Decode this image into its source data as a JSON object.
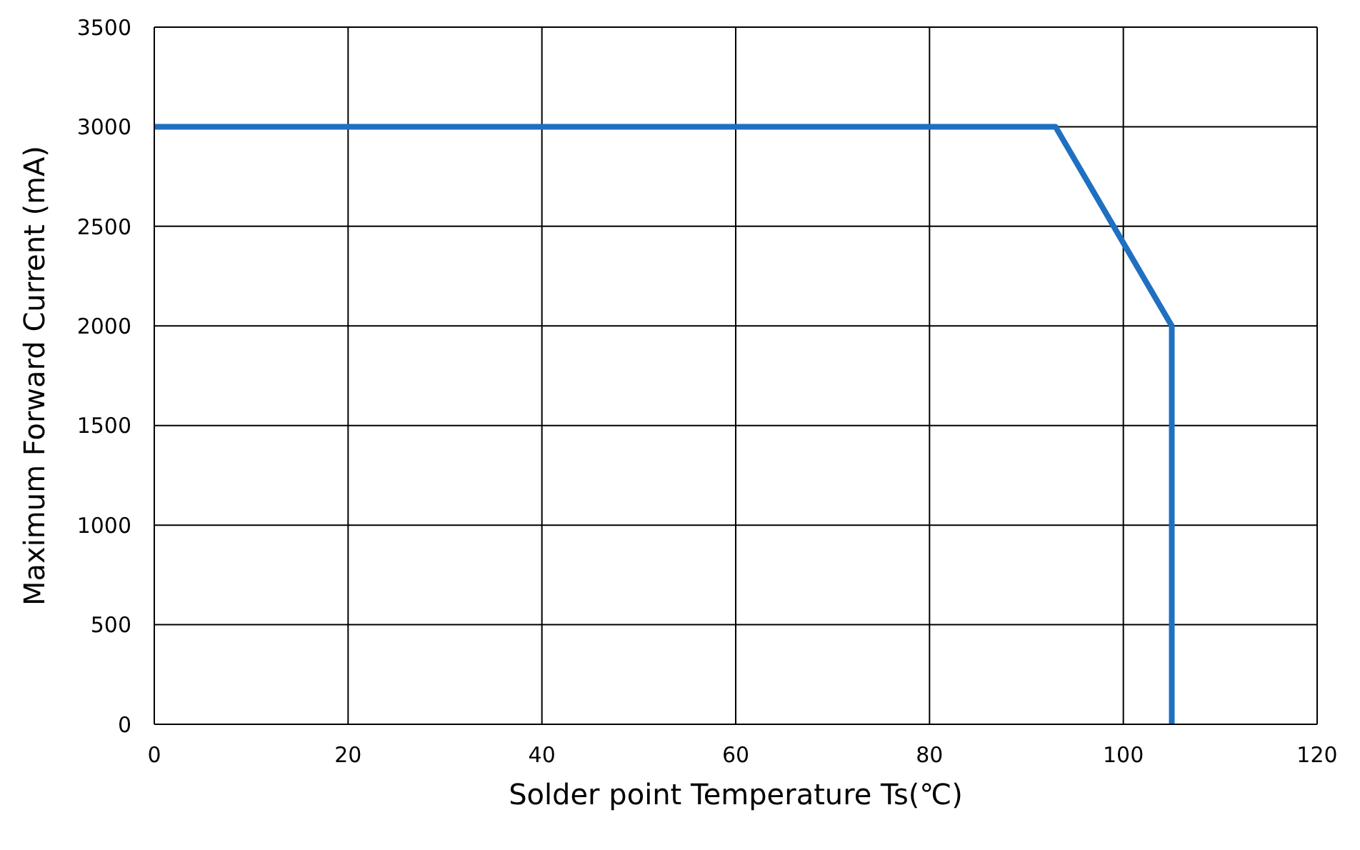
{
  "chart_data": {
    "type": "line",
    "xlabel": "Solder point Temperature Ts(℃)",
    "ylabel": "Maximum Forward Current (mA)",
    "series": [
      {
        "color": "#1f70c1",
        "x": [
          0,
          93,
          105,
          105
        ],
        "values": [
          3000,
          3000,
          2000,
          0
        ]
      }
    ],
    "xlim": [
      0,
      120
    ],
    "xticks": [
      0,
      20,
      40,
      60,
      80,
      100,
      120
    ],
    "ylim": [
      0,
      3500
    ],
    "yticks": [
      0,
      500,
      1000,
      1500,
      2000,
      2500,
      3000,
      3500
    ],
    "grid": true,
    "marker": "none",
    "line_style": "solid"
  }
}
